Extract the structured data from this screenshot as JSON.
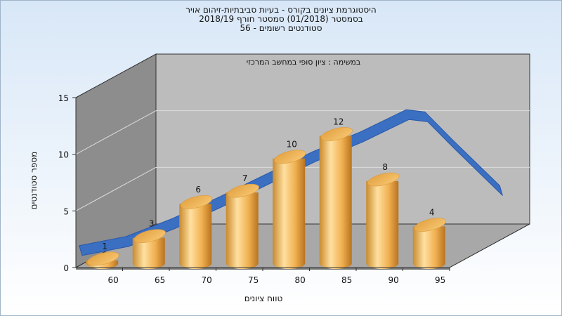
{
  "chart_data": {
    "type": "bar",
    "title_lines": [
      "היסטוגרמת ציונים בקורס - בעיות סביבתיות-זיהום אויר",
      "בסמסטר  (01/2018)  סמסטר חורף 2018/19",
      "סטודנטים רשומים - 56"
    ],
    "subtitle": "במשימה : ציון סופי במחשב המרכזי",
    "xlabel": "טווח ציונים",
    "ylabel": "מספר סטודנטים",
    "categories": [
      "60",
      "65",
      "70",
      "75",
      "80",
      "85",
      "90",
      "95"
    ],
    "values": [
      1,
      3,
      6,
      7,
      10,
      12,
      8,
      4
    ],
    "data_labels": [
      "1",
      "3",
      "6",
      "7",
      "10",
      "12",
      "8",
      "4"
    ],
    "yticks": [
      "0",
      "5",
      "10",
      "15"
    ],
    "ylim": [
      0,
      15
    ],
    "grid": true,
    "curve": {
      "x": [
        55,
        60,
        65,
        70,
        75,
        80,
        85,
        90,
        92,
        95,
        100
      ],
      "y": [
        0.2,
        1.0,
        2.6,
        4.5,
        6.5,
        8.5,
        10.2,
        12.2,
        12.0,
        9.5,
        5.5
      ]
    },
    "colors": {
      "bar_light": "#ffe0a0",
      "bar_mid": "#f2b050",
      "bar_dark": "#c07a20",
      "curve": "#3a6fc2",
      "wall_back": "#bcbcbc",
      "wall_left": "#8d8d8d",
      "floor": "#a8a8a8"
    }
  }
}
